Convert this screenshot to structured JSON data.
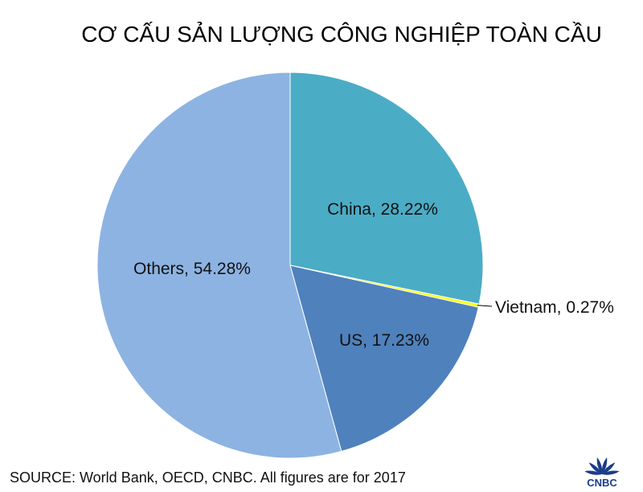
{
  "chart_data": {
    "type": "pie",
    "title": "CƠ CẤU SẢN LƯỢNG CÔNG NGHIỆP TOÀN CẦU",
    "slices": [
      {
        "label": "China, 28.22%",
        "value": 28.22,
        "color": "#4bacc6"
      },
      {
        "label": "Vietnam, 0.27%",
        "value": 0.27,
        "color": "#ffff00"
      },
      {
        "label": "US, 17.23%",
        "value": 17.23,
        "color": "#4f81bd"
      },
      {
        "label": "Others, 54.28%",
        "value": 54.28,
        "color": "#8db3e2"
      }
    ],
    "start_angle": "12 o'clock",
    "direction": "clockwise",
    "legend": "none"
  },
  "source": "SOURCE: World Bank, OECD, CNBC. All figures are for 2017",
  "logo": {
    "text": "CNBC",
    "icon": "peacock-icon",
    "color": "#1a3c8a"
  }
}
